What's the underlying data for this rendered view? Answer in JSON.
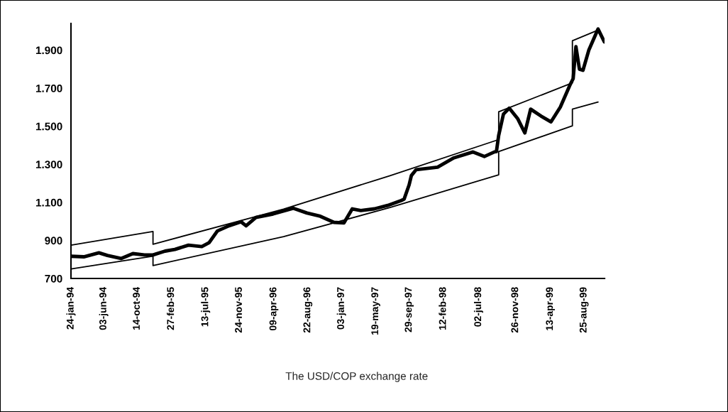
{
  "chart_data": {
    "type": "line",
    "annotations": [
      "The USD/COP exchange rate"
    ],
    "xlim": [
      "1994-01-24",
      "1999-11-15"
    ],
    "xticks": [
      {
        "value": "1994-01-24",
        "label": "24-jan-94"
      },
      {
        "value": "1994-06-03",
        "label": "03-jun-94"
      },
      {
        "value": "1994-10-14",
        "label": "14-oct-94"
      },
      {
        "value": "1995-02-27",
        "label": "27-feb-95"
      },
      {
        "value": "1995-07-13",
        "label": "13-jul-95"
      },
      {
        "value": "1995-11-24",
        "label": "24-nov-95"
      },
      {
        "value": "1996-04-09",
        "label": "09-apr-96"
      },
      {
        "value": "1996-08-22",
        "label": "22-aug-96"
      },
      {
        "value": "1997-01-03",
        "label": "03-jan-97"
      },
      {
        "value": "1997-05-19",
        "label": "19-may-97"
      },
      {
        "value": "1997-09-29",
        "label": "29-sep-97"
      },
      {
        "value": "1998-02-12",
        "label": "12-feb-98"
      },
      {
        "value": "1998-07-02",
        "label": "02-jul-98"
      },
      {
        "value": "1998-11-26",
        "label": "26-nov-98"
      },
      {
        "value": "1999-04-13",
        "label": "13-apr-99"
      },
      {
        "value": "1999-08-25",
        "label": "25-aug-99"
      }
    ],
    "ylim": [
      700,
      2040
    ],
    "yticks": [
      {
        "value": 700,
        "label": "700"
      },
      {
        "value": 900,
        "label": "900"
      },
      {
        "value": 1100,
        "label": "1.100"
      },
      {
        "value": 1300,
        "label": "1.300"
      },
      {
        "value": 1500,
        "label": "1.500"
      },
      {
        "value": 1700,
        "label": "1.700"
      },
      {
        "value": 1900,
        "label": "1.900"
      }
    ],
    "grid": false,
    "legend": false,
    "marker": "none",
    "line_style": "solid",
    "series": [
      {
        "color": "#000000",
        "x": [
          "1994-01-24",
          "1994-03-16",
          "1994-05-15",
          "1994-06-18",
          "1994-08-11",
          "1994-09-27",
          "1994-11-12",
          "1994-12-16",
          "1995-02-02",
          "1995-03-13",
          "1995-05-06",
          "1995-06-28",
          "1995-07-27",
          "1995-08-29",
          "1995-10-14",
          "1995-12-01",
          "1995-12-21",
          "1996-01-29",
          "1996-04-06",
          "1996-06-26",
          "1996-08-19",
          "1996-10-11",
          "1996-12-04",
          "1997-01-13",
          "1997-02-15",
          "1997-03-21",
          "1997-05-14",
          "1997-07-06",
          "1997-08-29",
          "1997-09-09",
          "1997-09-29",
          "1997-10-08",
          "1997-10-27",
          "1998-01-20",
          "1998-03-26",
          "1998-06-10",
          "1998-07-25",
          "1998-09-03",
          "1998-09-11",
          "1998-09-20",
          "1998-10-09",
          "1998-11-01",
          "1998-12-05",
          "1999-01-02",
          "1999-01-25",
          "1999-03-08",
          "1999-04-16",
          "1999-05-23",
          "1999-06-29",
          "1999-07-13",
          "1999-07-24",
          "1999-08-07",
          "1999-08-21",
          "1999-09-13",
          "1999-10-20",
          "1999-11-14"
        ],
        "values": [
          817,
          814,
          835,
          821,
          805,
          831,
          824,
          824,
          844,
          853,
          875,
          868,
          888,
          950,
          977,
          998,
          977,
          1021,
          1039,
          1069,
          1044,
          1027,
          995,
          992,
          1066,
          1057,
          1066,
          1084,
          1110,
          1117,
          1192,
          1241,
          1272,
          1285,
          1334,
          1365,
          1341,
          1365,
          1367,
          1452,
          1564,
          1595,
          1539,
          1465,
          1590,
          1553,
          1523,
          1601,
          1713,
          1750,
          1918,
          1800,
          1794,
          1899,
          2011,
          1943
        ]
      },
      {
        "color": "#000000",
        "x": [
          "1994-01-24",
          "1994-12-16",
          "1994-12-16",
          "1996-05-18",
          "1997-07-15",
          "1998-09-20",
          "1998-09-20",
          "1999-07-10",
          "1999-07-10",
          "1999-10-20"
        ],
        "values": [
          875,
          947,
          880,
          1065,
          1240,
          1430,
          1576,
          1728,
          1949,
          2005
        ]
      },
      {
        "color": "#000000",
        "x": [
          "1994-01-24",
          "1994-12-16",
          "1994-12-16",
          "1996-05-18",
          "1997-07-15",
          "1998-09-20",
          "1998-09-20",
          "1999-07-10",
          "1999-07-10",
          "1999-10-20"
        ],
        "values": [
          750,
          817,
          768,
          920,
          1073,
          1245,
          1367,
          1502,
          1590,
          1627
        ]
      }
    ]
  }
}
